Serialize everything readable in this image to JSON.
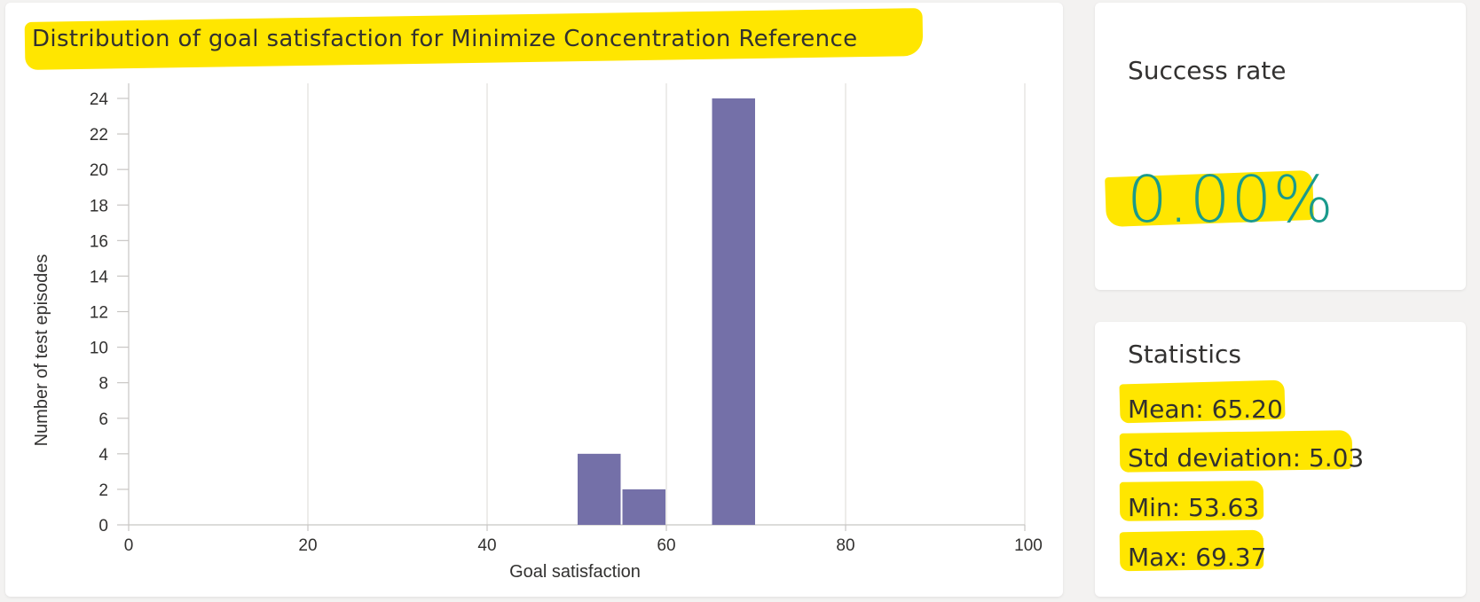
{
  "chart_data": {
    "type": "bar",
    "title": "Distribution of goal satisfaction for Minimize Concentration Reference",
    "xlabel": "Goal satisfaction",
    "ylabel": "Number of test episodes",
    "xlim": [
      0,
      100
    ],
    "ylim": [
      0,
      25
    ],
    "x_ticks": [
      0,
      20,
      40,
      60,
      80,
      100
    ],
    "y_ticks": [
      0,
      2,
      4,
      6,
      8,
      10,
      12,
      14,
      16,
      18,
      20,
      22,
      24
    ],
    "bin_width": 5,
    "bars": [
      {
        "bin_start": 50,
        "bin_end": 55,
        "value": 4
      },
      {
        "bin_start": 55,
        "bin_end": 60,
        "value": 2
      },
      {
        "bin_start": 65,
        "bin_end": 70,
        "value": 24
      }
    ],
    "grid": true,
    "bar_color": "#7470a8"
  },
  "success_rate": {
    "title": "Success rate",
    "value": "0.00%",
    "value_color": "#1a9a8c"
  },
  "statistics": {
    "title": "Statistics",
    "mean": "Mean: 65.20",
    "std": "Std deviation: 5.03",
    "min": "Min: 53.63",
    "max": "Max: 69.37"
  },
  "highlight_color": "#ffe600"
}
